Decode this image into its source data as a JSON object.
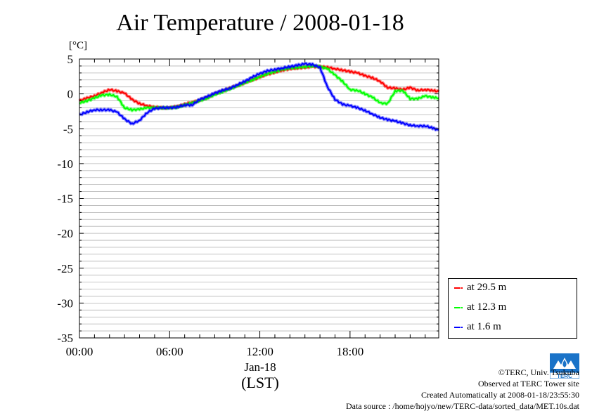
{
  "chart_data": {
    "type": "line",
    "title": "Air Temperature / 2008-01-18",
    "ylabel": "[°C]",
    "xlabel": "(LST)",
    "date_label": "Jan-18",
    "ylim": [
      -35,
      5
    ],
    "yticks": [
      5,
      0,
      -5,
      -10,
      -15,
      -20,
      -25,
      -30,
      -35
    ],
    "xlim": [
      0,
      23.9
    ],
    "xticks": [
      {
        "hour": 0,
        "label": "00:00"
      },
      {
        "hour": 6,
        "label": "06:00"
      },
      {
        "hour": 12,
        "label": "12:00"
      },
      {
        "hour": 18,
        "label": "18:00"
      }
    ],
    "grid": true,
    "legend_position": "bottom-right outside",
    "series": [
      {
        "name": "at 29.5 m",
        "color": "#ff0000",
        "x": [
          0,
          0.5,
          1,
          1.5,
          2,
          2.5,
          3,
          3.5,
          4,
          4.5,
          5,
          5.5,
          6,
          6.5,
          7,
          7.5,
          8,
          8.5,
          9,
          9.5,
          10,
          10.5,
          11,
          11.5,
          12,
          12.5,
          13,
          13.5,
          14,
          14.5,
          15,
          15.5,
          16,
          16.5,
          17,
          17.5,
          18,
          18.5,
          19,
          19.5,
          20,
          20.5,
          21,
          21.5,
          22,
          22.5,
          23,
          23.5,
          23.9
        ],
        "y": [
          -1,
          -0.6,
          -0.3,
          0.2,
          0.6,
          0.4,
          0.1,
          -0.8,
          -1.4,
          -1.7,
          -1.9,
          -2.0,
          -2.0,
          -1.8,
          -1.5,
          -1.2,
          -0.9,
          -0.5,
          0,
          0.4,
          0.8,
          1.2,
          1.6,
          2.0,
          2.4,
          2.8,
          3.1,
          3.4,
          3.6,
          3.7,
          3.8,
          3.9,
          3.9,
          3.8,
          3.6,
          3.4,
          3.2,
          3.0,
          2.6,
          2.3,
          1.8,
          0.9,
          0.8,
          0.6,
          0.9,
          0.5,
          0.6,
          0.5,
          0.3
        ]
      },
      {
        "name": "at 12.3 m",
        "color": "#00ff00",
        "x": [
          0,
          0.5,
          1,
          1.5,
          2,
          2.5,
          3,
          3.5,
          4,
          4.5,
          5,
          5.5,
          6,
          6.5,
          7,
          7.5,
          8,
          8.5,
          9,
          9.5,
          10,
          10.5,
          11,
          11.5,
          12,
          12.5,
          13,
          13.5,
          14,
          14.5,
          15,
          15.5,
          16,
          16.5,
          17,
          17.5,
          18,
          18.5,
          19,
          19.5,
          20,
          20.5,
          21,
          21.5,
          22,
          22.5,
          23,
          23.5,
          23.9
        ],
        "y": [
          -1.3,
          -1.0,
          -0.6,
          -0.2,
          -0.1,
          -0.4,
          -2.0,
          -2.3,
          -2.2,
          -2.0,
          -2.0,
          -2.0,
          -2.0,
          -1.9,
          -1.6,
          -1.3,
          -1.0,
          -0.6,
          -0.1,
          0.3,
          0.7,
          1.1,
          1.6,
          2.0,
          2.5,
          2.9,
          3.2,
          3.5,
          3.7,
          3.8,
          3.9,
          4.0,
          3.9,
          3.6,
          2.7,
          1.8,
          0.6,
          0.5,
          0,
          -0.5,
          -1.3,
          -1.4,
          0.4,
          0.5,
          -0.7,
          -0.7,
          -0.3,
          -0.5,
          -0.6
        ]
      },
      {
        "name": "at 1.6 m",
        "color": "#0000ff",
        "x": [
          0,
          0.5,
          1,
          1.5,
          2,
          2.5,
          3,
          3.5,
          4,
          4.5,
          5,
          5.5,
          6,
          6.5,
          7,
          7.5,
          8,
          8.5,
          9,
          9.5,
          10,
          10.5,
          11,
          11.5,
          12,
          12.5,
          13,
          13.5,
          14,
          14.5,
          15,
          15.5,
          16,
          16.5,
          17,
          17.5,
          18,
          18.5,
          19,
          19.5,
          20,
          20.5,
          21,
          21.5,
          22,
          22.5,
          23,
          23.5,
          23.9
        ],
        "y": [
          -3,
          -2.6,
          -2.3,
          -2.3,
          -2.3,
          -2.6,
          -3.6,
          -4.3,
          -3.8,
          -2.7,
          -2.1,
          -2.0,
          -2.0,
          -1.9,
          -1.6,
          -1.6,
          -0.8,
          -0.4,
          0.1,
          0.5,
          0.8,
          1.3,
          1.8,
          2.4,
          2.9,
          3.3,
          3.5,
          3.7,
          3.9,
          4.1,
          4.3,
          4.2,
          3.8,
          1.0,
          -0.8,
          -1.5,
          -1.7,
          -2.0,
          -2.4,
          -2.9,
          -3.4,
          -3.7,
          -3.9,
          -4.2,
          -4.5,
          -4.6,
          -4.6,
          -4.9,
          -5.2
        ]
      }
    ]
  },
  "legend": [
    {
      "label": "at 29.5 m",
      "color": "#ff0000"
    },
    {
      "label": "at 12.3 m",
      "color": "#00ff00"
    },
    {
      "label": "at 1.6 m",
      "color": "#0000ff"
    }
  ],
  "credits": {
    "line1": "©TERC, Univ. Tsukuba",
    "line2": "Observed at TERC Tower site",
    "line3": "Created Automatically at 2008-01-18/23:55:30",
    "line4": "Data source : /home/hojyo/new/TERC-data/sorted_data/MET.10s.dat"
  },
  "logo": {
    "text": "TERC",
    "icon": "terc-logo-icon",
    "color": "#1a73c8"
  }
}
